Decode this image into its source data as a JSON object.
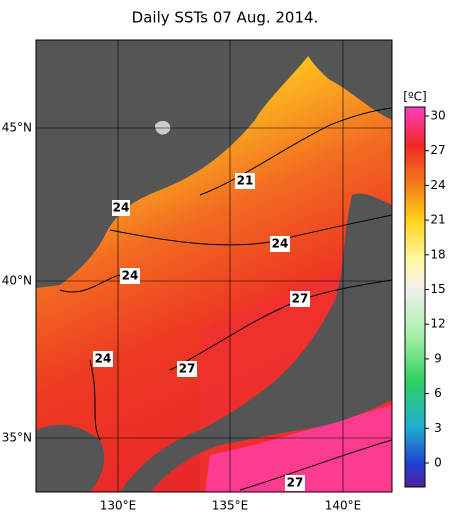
{
  "title": "Daily SSTs 07 Aug. 2014.",
  "map": {
    "lat_labels": [
      "45°N",
      "40°N",
      "35°N"
    ],
    "lon_labels": [
      "130°E",
      "135°E",
      "140°E"
    ],
    "contour_labels": [
      21,
      24,
      24,
      24,
      27,
      24,
      27,
      27
    ]
  },
  "colorbar": {
    "unit": "[ºC]",
    "ticks": [
      30,
      27,
      24,
      21,
      18,
      15,
      12,
      9,
      6,
      3,
      0
    ]
  }
}
